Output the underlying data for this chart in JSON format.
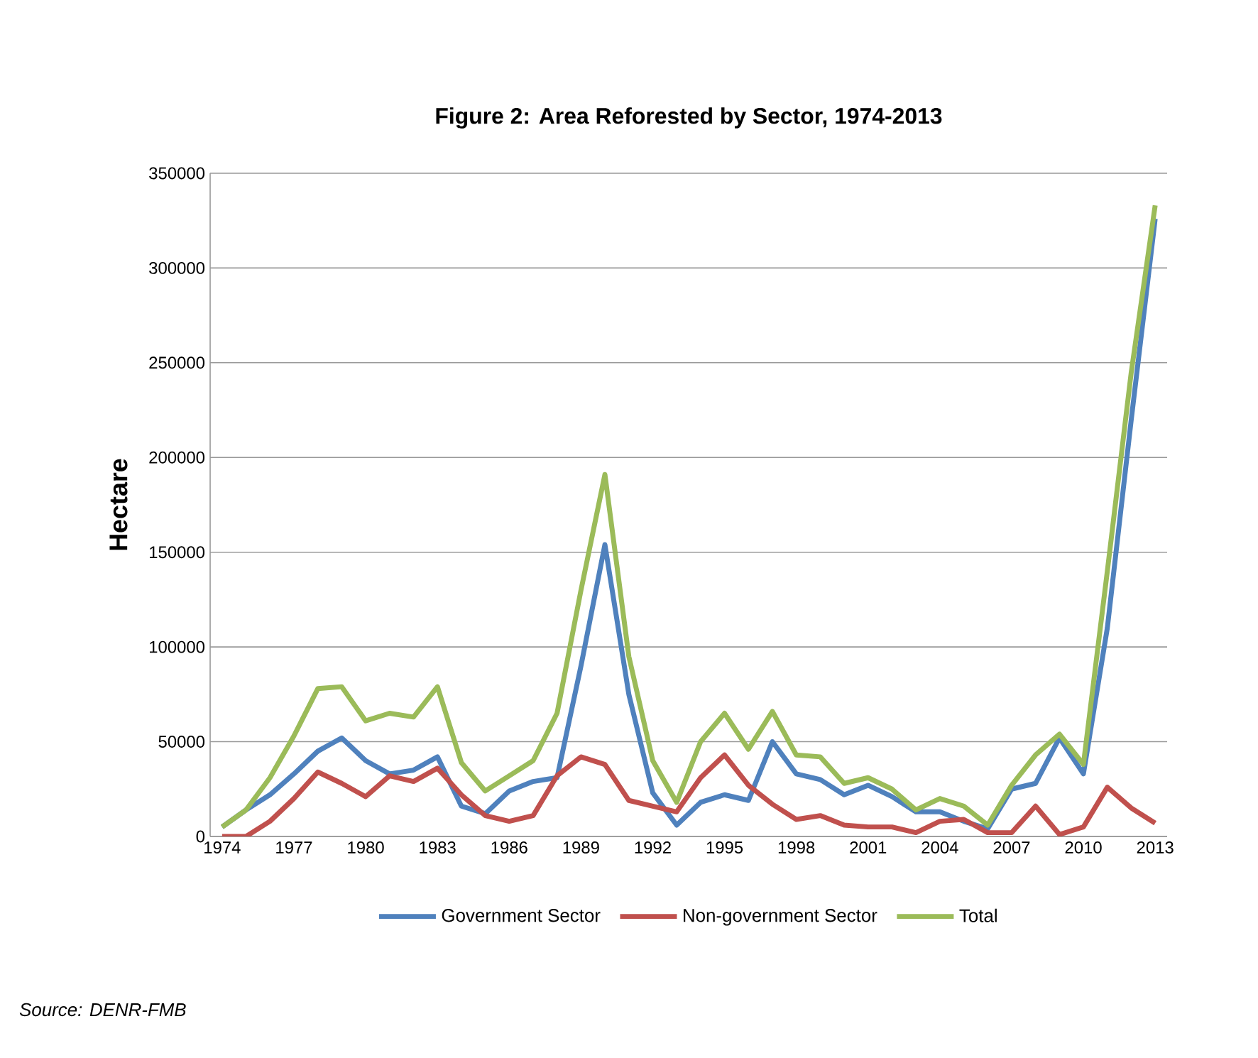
{
  "chart_data": {
    "type": "line",
    "title": "Figure 2: Area Reforested by Sector, 1974-2013",
    "ylabel": "Hectare",
    "categories": [
      "1974",
      null,
      null,
      "1977",
      null,
      null,
      "1980",
      null,
      null,
      "1983",
      null,
      null,
      "1986",
      null,
      null,
      "1989",
      null,
      null,
      "1992",
      null,
      null,
      "1995",
      null,
      null,
      "1998",
      null,
      null,
      "2001",
      null,
      null,
      "2004",
      null,
      null,
      "2007",
      null,
      null,
      "2010",
      null,
      null,
      "2013"
    ],
    "series": [
      {
        "name": "Government Sector",
        "color": "#4f81bd",
        "values": [
          5000,
          14000,
          22000,
          33000,
          45000,
          52000,
          40000,
          33000,
          35000,
          42000,
          16000,
          12000,
          24000,
          29000,
          31000,
          90000,
          154000,
          75000,
          23000,
          6000,
          18000,
          22000,
          19000,
          50000,
          33000,
          30000,
          22000,
          27000,
          21000,
          13000,
          13000,
          8000,
          4000,
          25000,
          28000,
          52000,
          33000,
          110000,
          220000,
          326000
        ]
      },
      {
        "name": "Non-government Sector",
        "color": "#c0504d",
        "values": [
          0,
          0,
          8000,
          20000,
          34000,
          28000,
          21000,
          32000,
          29000,
          36000,
          22000,
          11000,
          8000,
          11000,
          32000,
          42000,
          38000,
          19000,
          16000,
          13000,
          31000,
          43000,
          27000,
          17000,
          9000,
          11000,
          6000,
          5000,
          5000,
          2000,
          8000,
          9000,
          2000,
          2000,
          16000,
          1000,
          5000,
          26000,
          15000,
          7000
        ]
      },
      {
        "name": "Total",
        "color": "#9bbb59",
        "values": [
          5000,
          14000,
          31000,
          53000,
          78000,
          79000,
          61000,
          65000,
          63000,
          79000,
          39000,
          24000,
          32000,
          40000,
          65000,
          130000,
          191000,
          95000,
          40000,
          18000,
          50000,
          65000,
          46000,
          66000,
          43000,
          42000,
          28000,
          31000,
          25000,
          14000,
          20000,
          16000,
          6000,
          27000,
          43000,
          54000,
          38000,
          140000,
          245000,
          333000
        ]
      }
    ],
    "ylim": [
      0,
      350000
    ],
    "yticks": [
      0,
      50000,
      100000,
      150000,
      200000,
      250000,
      300000,
      350000
    ],
    "grid": "y",
    "legend": "bottom",
    "marker": "none",
    "line_style": "solid",
    "annotations": [
      "*Source: DENR-FMB*"
    ]
  }
}
